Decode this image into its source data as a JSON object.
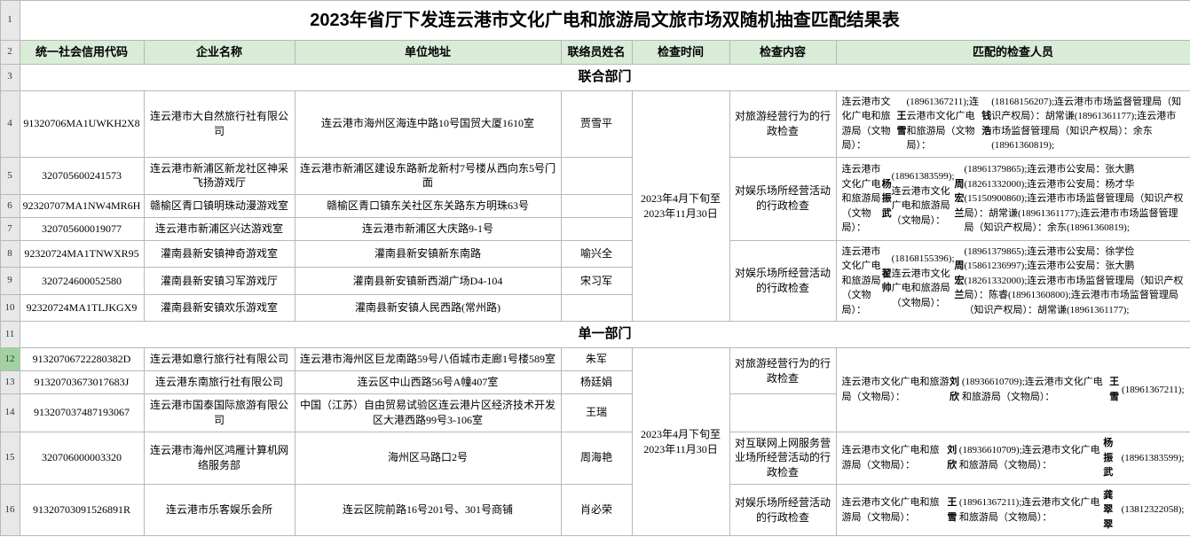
{
  "title": "2023年省厅下发连云港市文化广电和旅游局文旅市场双随机抽查匹配结果表",
  "headers": {
    "c1": "统一社会信用代码",
    "c2": "企业名称",
    "c3": "单位地址",
    "c4": "联络员姓名",
    "c5": "检查时间",
    "c6": "检查内容",
    "c7": "匹配的检查人员"
  },
  "section1": "联合部门",
  "section2": "单一部门",
  "time1": "2023年4月下旬至2023年11月30日",
  "time2": "2023年4月下旬至2023年11月30日",
  "content": {
    "r4": "对旅游经营行为的行政检查",
    "r5_7": "对娱乐场所经营活动的行政检查",
    "r8_10": "对娱乐场所经营活动的行政检查",
    "r12_13": "对旅游经营行为的行政检查",
    "r15": "对互联网上网服务营业场所经营活动的行政检查",
    "r16": "对娱乐场所经营活动的行政检查"
  },
  "rows": {
    "r4": {
      "n": "4",
      "code": "91320706MA1UWKH2X8",
      "name": "连云港市大自然旅行社有限公司",
      "addr": "连云港市海州区海连中路10号国贸大厦1610室",
      "contact": "贾雪平"
    },
    "r5": {
      "n": "5",
      "code": "320705600241573",
      "name": "连云港市新浦区新龙社区神采飞扬游戏厅",
      "addr": "连云港市新浦区建设东路新龙新村7号楼从西向东5号门面",
      "contact": ""
    },
    "r6": {
      "n": "6",
      "code": "92320707MA1NW4MR6H",
      "name": "赣榆区青口镇明珠动漫游戏室",
      "addr": "赣榆区青口镇东关社区东关路东方明珠63号",
      "contact": ""
    },
    "r7": {
      "n": "7",
      "code": "320705600019077",
      "name": "连云港市新浦区兴达游戏室",
      "addr": "连云港市新浦区大庆路9-1号",
      "contact": ""
    },
    "r8": {
      "n": "8",
      "code": "92320724MA1TNWXR95",
      "name": "灌南县新安镇神奇游戏室",
      "addr": "灌南县新安镇新东南路",
      "contact": "喻兴全"
    },
    "r9": {
      "n": "9",
      "code": "320724600052580",
      "name": "灌南县新安镇习军游戏厅",
      "addr": "灌南县新安镇新西湖广场D4-104",
      "contact": "宋习军"
    },
    "r10": {
      "n": "10",
      "code": "92320724MA1TLJKGX9",
      "name": "灌南县新安镇欢乐游戏室",
      "addr": "灌南县新安镇人民西路(常州路)",
      "contact": ""
    },
    "r12": {
      "n": "12",
      "code": "91320706722280382D",
      "name": "连云港如意行旅行社有限公司",
      "addr": "连云港市海州区巨龙南路59号八佰城市走廊1号楼589室",
      "contact": "朱军"
    },
    "r13": {
      "n": "13",
      "code": "91320703673017683J",
      "name": "连云港东南旅行社有限公司",
      "addr": "连云区中山西路56号A幢407室",
      "contact": "杨廷娟"
    },
    "r14": {
      "n": "14",
      "code": "913207037487193067",
      "name": "连云港市国泰国际旅游有限公司",
      "addr": "中国（江苏）自由贸易试验区连云港片区经济技术开发区大港西路99号3-106室",
      "contact": "王瑞"
    },
    "r15": {
      "n": "15",
      "code": "320706000003320",
      "name": "连云港市海州区鸿雁计算机网络服务部",
      "addr": "海州区马路口2号",
      "contact": "周海艳"
    },
    "r16": {
      "n": "16",
      "code": "91320703091526891R",
      "name": "连云港市乐客娱乐会所",
      "addr": "连云区院前路16号201号、301号商铺",
      "contact": "肖必荣"
    }
  },
  "rownums": {
    "r1": "1",
    "r2": "2",
    "r3": "3",
    "r11": "11"
  }
}
